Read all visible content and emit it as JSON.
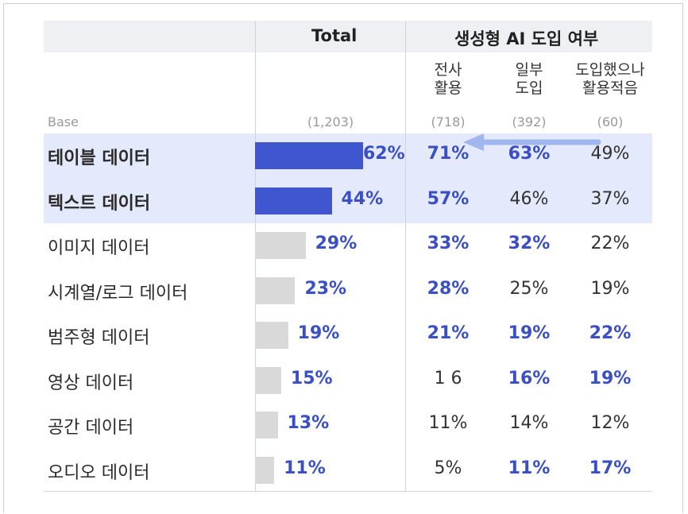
{
  "chart_data": {
    "type": "table",
    "header": {
      "total": "Total",
      "group": "생성형 AI 도입 여부",
      "subgroups": [
        {
          "line1": "전사",
          "line2": "활용"
        },
        {
          "line1": "일부",
          "line2": "도입"
        },
        {
          "line1": "도입했으나",
          "line2": "활용적음"
        }
      ]
    },
    "base": {
      "label": "Base",
      "total": "(1,203)",
      "subgroups": [
        "(718)",
        "(392)",
        "(60)"
      ]
    },
    "rows": [
      {
        "label": "테이블 데이터",
        "total": 62,
        "total_label": "62%",
        "cells": [
          "71%",
          "63%",
          "49%"
        ],
        "cell_highlight": [
          true,
          true,
          false
        ],
        "highlight": true
      },
      {
        "label": "텍스트 데이터",
        "total": 44,
        "total_label": "44%",
        "cells": [
          "57%",
          "46%",
          "37%"
        ],
        "cell_highlight": [
          true,
          false,
          false
        ],
        "highlight": true
      },
      {
        "label": "이미지 데이터",
        "total": 29,
        "total_label": "29%",
        "cells": [
          "33%",
          "32%",
          "22%"
        ],
        "cell_highlight": [
          true,
          true,
          false
        ],
        "highlight": false
      },
      {
        "label": "시계열/로그 데이터",
        "total": 23,
        "total_label": "23%",
        "cells": [
          "28%",
          "25%",
          "19%"
        ],
        "cell_highlight": [
          true,
          false,
          false
        ],
        "highlight": false
      },
      {
        "label": "범주형 데이터",
        "total": 19,
        "total_label": "19%",
        "cells": [
          "21%",
          "19%",
          "22%"
        ],
        "cell_highlight": [
          true,
          true,
          true
        ],
        "highlight": false
      },
      {
        "label": "영상 데이터",
        "total": 15,
        "total_label": "15%",
        "cells": [
          "1 6",
          "16%",
          "19%"
        ],
        "cell_highlight": [
          false,
          true,
          true
        ],
        "highlight": false
      },
      {
        "label": "공간 데이터",
        "total": 13,
        "total_label": "13%",
        "cells": [
          "11%",
          "14%",
          "12%"
        ],
        "cell_highlight": [
          false,
          false,
          false
        ],
        "highlight": false
      },
      {
        "label": "오디오 데이터",
        "total": 11,
        "total_label": "11%",
        "cells": [
          "5%",
          "11%",
          "17%"
        ],
        "cell_highlight": [
          false,
          true,
          true
        ],
        "highlight": false
      }
    ],
    "colors": {
      "highlight_bar": "#3f56cf",
      "normal_bar": "#d9d9d9",
      "highlight_text": "#3b4fc4",
      "highlight_band": "#e4e9fb",
      "header_band": "#eef0f3",
      "arrow": "#9fb6ee"
    }
  }
}
